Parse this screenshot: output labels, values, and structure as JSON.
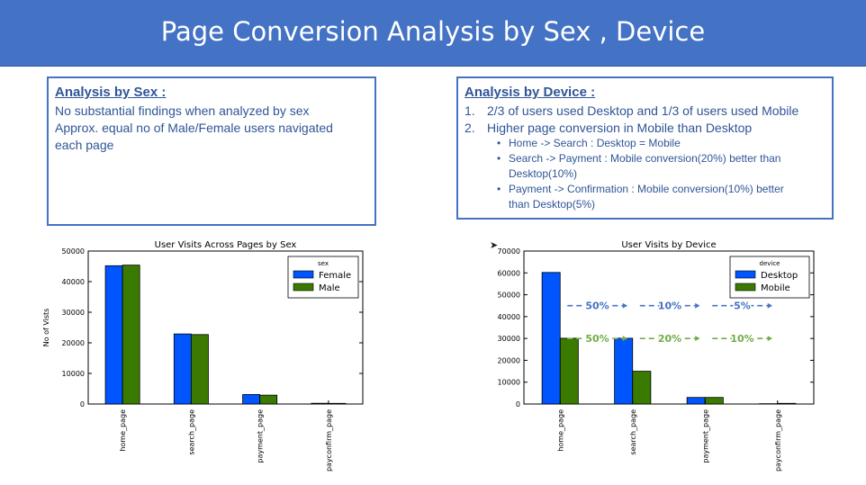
{
  "banner": {
    "title": "Page Conversion Analysis by Sex , Device"
  },
  "sex_box": {
    "heading": "Analysis by Sex :",
    "lines": [
      "No substantial findings when analyzed by sex",
      "Approx. equal no of Male/Female users navigated",
      "each page"
    ]
  },
  "device_box": {
    "heading": "Analysis by Device :",
    "points": [
      {
        "num": "1.",
        "text": "2/3 of users used Desktop and 1/3 of users used Mobile"
      },
      {
        "num": "2.",
        "text": "Higher page conversion in Mobile than Desktop"
      }
    ],
    "bullets": [
      "Home -> Search : Desktop = Mobile",
      "Search -> Payment : Mobile conversion(20%) better than",
      "Desktop(10%)",
      "Payment -> Confirmation : Mobile conversion(10%) better",
      "than Desktop(5%)"
    ]
  },
  "chart_data": [
    {
      "type": "bar",
      "title": "User Visits Across Pages by Sex",
      "ylabel": "No of Vists",
      "xlabel": "",
      "categories": [
        "home_page",
        "search_page",
        "payment_page",
        "payconfirm_page"
      ],
      "series": [
        {
          "name": "Female",
          "color": "#0055ff",
          "values": [
            45200,
            22900,
            3100,
            240
          ]
        },
        {
          "name": "Male",
          "color": "#3a7a00",
          "values": [
            45400,
            22700,
            2900,
            210
          ]
        }
      ],
      "ylim": [
        0,
        50000
      ],
      "yticks": [
        0,
        10000,
        20000,
        30000,
        40000,
        50000
      ],
      "legend_title": "sex",
      "legend": "top-right",
      "grid": false
    },
    {
      "type": "bar",
      "title": "User Visits by Device",
      "ylabel": "",
      "xlabel": "",
      "categories": [
        "home_page",
        "search_page",
        "payment_page",
        "payconfirm_page"
      ],
      "series": [
        {
          "name": "Desktop",
          "color": "#0055ff",
          "values": [
            60200,
            30100,
            3000,
            150
          ]
        },
        {
          "name": "Mobile",
          "color": "#3a7a00",
          "values": [
            30100,
            15000,
            3000,
            300
          ]
        }
      ],
      "ylim": [
        0,
        70000
      ],
      "yticks": [
        0,
        10000,
        20000,
        30000,
        40000,
        50000,
        60000,
        70000
      ],
      "legend_title": "device",
      "legend": "top-right",
      "grid": false,
      "annotations": [
        {
          "text": "50%",
          "color": "#4472c4",
          "level": 45000,
          "after_category": 0
        },
        {
          "text": "10%",
          "color": "#4472c4",
          "level": 45000,
          "after_category": 1
        },
        {
          "text": "5%",
          "color": "#4472c4",
          "level": 45000,
          "after_category": 2
        },
        {
          "text": "50%",
          "color": "#70ad47",
          "level": 30000,
          "after_category": 0
        },
        {
          "text": "20%",
          "color": "#70ad47",
          "level": 30000,
          "after_category": 1
        },
        {
          "text": "10%",
          "color": "#70ad47",
          "level": 30000,
          "after_category": 2
        }
      ]
    }
  ]
}
